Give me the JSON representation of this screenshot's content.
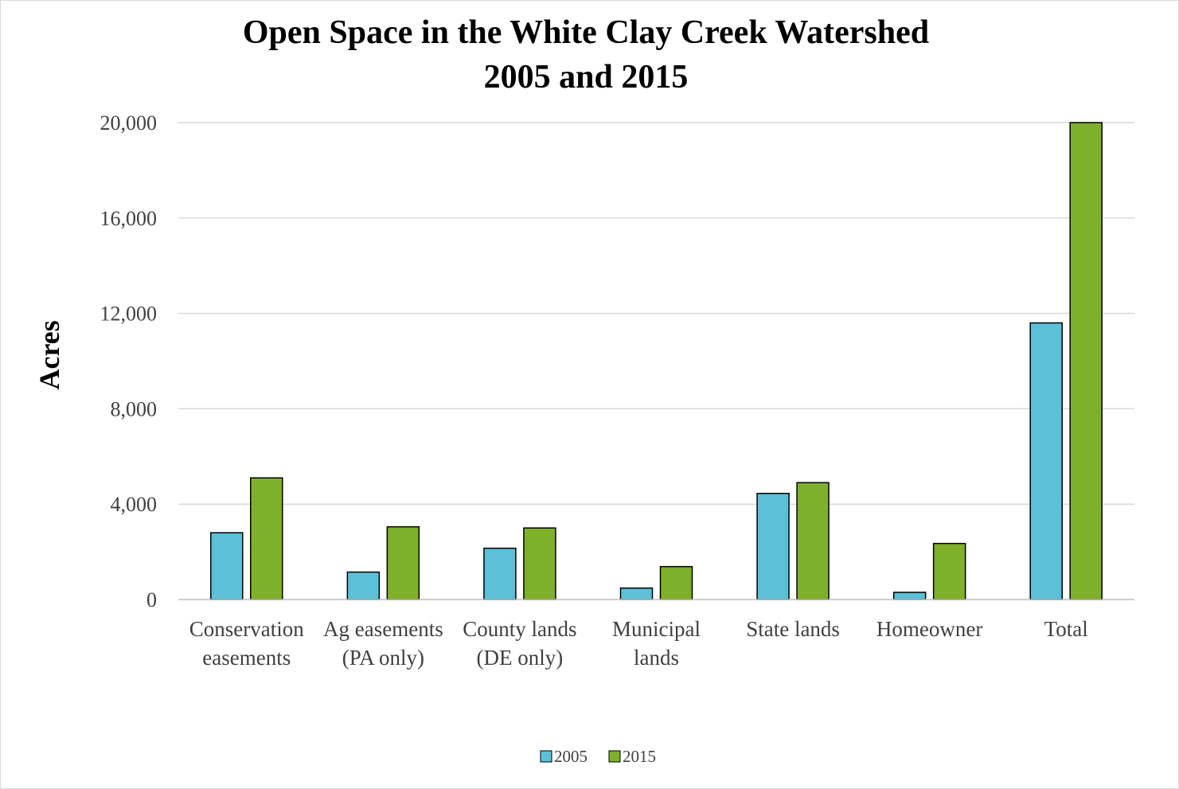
{
  "chart_data": {
    "type": "bar",
    "title": [
      "Open Space in the White Clay Creek Watershed",
      "2005 and 2015"
    ],
    "xlabel": "",
    "ylabel": "Acres",
    "ylim": [
      0,
      20000
    ],
    "yticks": [
      0,
      4000,
      8000,
      12000,
      16000,
      20000
    ],
    "ytick_labels": [
      "0",
      "4,000",
      "8,000",
      "12,000",
      "16,000",
      "20,000"
    ],
    "grid": true,
    "legend_position": "bottom",
    "categories": [
      [
        "Conservation",
        "easements"
      ],
      [
        "Ag easements",
        "(PA only)"
      ],
      [
        "County lands",
        "(DE only)"
      ],
      [
        "Municipal",
        "lands"
      ],
      [
        "State lands"
      ],
      [
        "Homeowner"
      ],
      [
        "Total"
      ]
    ],
    "series": [
      {
        "name": "2005",
        "color": "#5bc0d8",
        "values": [
          2800,
          1150,
          2150,
          480,
          4450,
          300,
          11600
        ]
      },
      {
        "name": "2015",
        "color": "#7fb02a",
        "values": [
          5100,
          3050,
          3000,
          1380,
          4900,
          2350,
          20000
        ]
      }
    ]
  }
}
